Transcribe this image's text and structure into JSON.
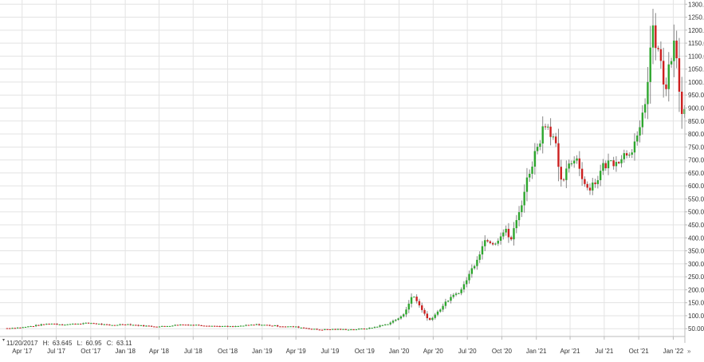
{
  "chart_data": {
    "type": "candlestick",
    "ohlc_info": {
      "date": "11/20/2017",
      "high_label": "H:",
      "high": "63.645",
      "low_label": "L:",
      "low": "60.95",
      "close_label": "C:",
      "close": "63.11"
    },
    "y_ticks": [
      "50.00",
      "100.00",
      "150.00",
      "200.00",
      "250.00",
      "300.00",
      "350.00",
      "400.00",
      "450.00",
      "500.00",
      "550.00",
      "600.00",
      "650.00",
      "700.00",
      "750.00",
      "800.00",
      "850.00",
      "900.00",
      "950.00",
      "1000.00",
      "1050.00",
      "1100.00",
      "1150.00",
      "1200.00",
      "1250.00",
      "1300.00"
    ],
    "x_ticks": [
      "Apr '17",
      "Jul '17",
      "Oct '17",
      "Jan '18",
      "Apr '18",
      "Jul '18",
      "Oct '18",
      "Jan '19",
      "Apr '19",
      "Jul '19",
      "Oct '19",
      "Jan '20",
      "Apr '20",
      "Jul '20",
      "Oct '20",
      "Jan '21",
      "Apr '21",
      "Jul '21",
      "Oct '21",
      "Jan '22"
    ],
    "x_range": [
      "Feb 2017",
      "Feb 2022"
    ],
    "ylim": [
      20,
      1310
    ],
    "colors": {
      "up": "#2ea62e",
      "down": "#cc1f1f",
      "wick": "#888888",
      "grid": "#e3e3e3"
    },
    "grid": true,
    "weekly_closes": [
      {
        "date": "2017-02-20",
        "close": 52
      },
      {
        "date": "2017-04-01",
        "close": 55
      },
      {
        "date": "2017-06-15",
        "close": 70
      },
      {
        "date": "2017-07-20",
        "close": 66
      },
      {
        "date": "2017-10-01",
        "close": 72
      },
      {
        "date": "2017-11-20",
        "close": 63
      },
      {
        "date": "2018-01-01",
        "close": 68
      },
      {
        "date": "2018-02-10",
        "close": 62
      },
      {
        "date": "2018-04-01",
        "close": 58
      },
      {
        "date": "2018-06-01",
        "close": 66
      },
      {
        "date": "2018-07-15",
        "close": 64
      },
      {
        "date": "2018-09-01",
        "close": 60
      },
      {
        "date": "2018-10-15",
        "close": 58
      },
      {
        "date": "2018-12-15",
        "close": 66
      },
      {
        "date": "2019-01-10",
        "close": 64
      },
      {
        "date": "2019-02-15",
        "close": 60
      },
      {
        "date": "2019-04-01",
        "close": 57
      },
      {
        "date": "2019-06-01",
        "close": 46
      },
      {
        "date": "2019-07-01",
        "close": 48
      },
      {
        "date": "2019-09-01",
        "close": 47
      },
      {
        "date": "2019-10-15",
        "close": 52
      },
      {
        "date": "2019-12-01",
        "close": 68
      },
      {
        "date": "2020-01-10",
        "close": 98
      },
      {
        "date": "2020-02-07",
        "close": 180
      },
      {
        "date": "2020-03-10",
        "close": 105
      },
      {
        "date": "2020-03-20",
        "close": 80
      },
      {
        "date": "2020-04-10",
        "close": 110
      },
      {
        "date": "2020-05-10",
        "close": 160
      },
      {
        "date": "2020-06-15",
        "close": 200
      },
      {
        "date": "2020-07-01",
        "close": 245
      },
      {
        "date": "2020-07-20",
        "close": 300
      },
      {
        "date": "2020-08-20",
        "close": 400
      },
      {
        "date": "2020-09-10",
        "close": 380
      },
      {
        "date": "2020-10-10",
        "close": 430
      },
      {
        "date": "2020-10-25",
        "close": 390
      },
      {
        "date": "2020-11-20",
        "close": 520
      },
      {
        "date": "2020-12-10",
        "close": 640
      },
      {
        "date": "2021-01-05",
        "close": 760
      },
      {
        "date": "2021-01-25",
        "close": 850
      },
      {
        "date": "2021-02-20",
        "close": 780
      },
      {
        "date": "2021-03-05",
        "close": 600
      },
      {
        "date": "2021-03-25",
        "close": 660
      },
      {
        "date": "2021-04-15",
        "close": 720
      },
      {
        "date": "2021-05-15",
        "close": 590
      },
      {
        "date": "2021-06-10",
        "close": 620
      },
      {
        "date": "2021-06-30",
        "close": 680
      },
      {
        "date": "2021-08-01",
        "close": 700
      },
      {
        "date": "2021-09-01",
        "close": 730
      },
      {
        "date": "2021-10-01",
        "close": 780
      },
      {
        "date": "2021-10-25",
        "close": 1000
      },
      {
        "date": "2021-11-05",
        "close": 1200
      },
      {
        "date": "2021-11-25",
        "close": 1100
      },
      {
        "date": "2021-12-10",
        "close": 960
      },
      {
        "date": "2021-12-25",
        "close": 1080
      },
      {
        "date": "2022-01-05",
        "close": 1150
      },
      {
        "date": "2022-01-15",
        "close": 1000
      },
      {
        "date": "2022-01-25",
        "close": 860
      },
      {
        "date": "2022-02-05",
        "close": 920
      }
    ]
  }
}
